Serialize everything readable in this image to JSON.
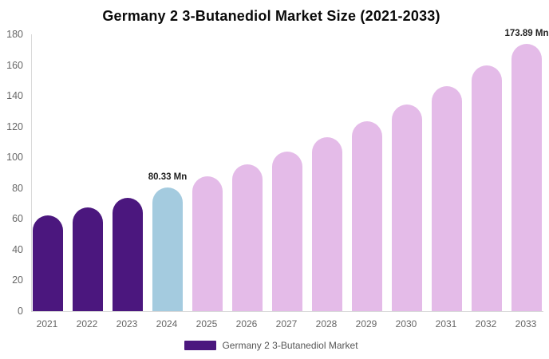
{
  "title": "Germany 2 3-Butanediol Market Size (2021-2033)",
  "legend": {
    "label": "Germany 2 3-Butanediol Market",
    "swatch_color": "#4B177E"
  },
  "colors": {
    "bar_past": "#4B177E",
    "bar_current": "#A4CBDF",
    "bar_forecast": "#E4BBE8",
    "axis_line": "#D9D9D9",
    "tick_text": "#666666",
    "value_label_text": "#222222",
    "background": "#FFFFFF"
  },
  "chart_data": {
    "type": "bar",
    "title": "Germany 2 3-Butanediol Market Size (2021-2033)",
    "series_name": "Germany 2 3-Butanediol Market",
    "categories": [
      "2021",
      "2022",
      "2023",
      "2024",
      "2025",
      "2026",
      "2027",
      "2028",
      "2029",
      "2030",
      "2031",
      "2032",
      "2033"
    ],
    "values": [
      62.1,
      67.6,
      73.7,
      80.33,
      87.5,
      95.3,
      103.9,
      113.2,
      123.3,
      134.4,
      146.4,
      159.6,
      173.89
    ],
    "bar_colors": [
      "#4B177E",
      "#4B177E",
      "#4B177E",
      "#A4CBDF",
      "#E4BBE8",
      "#E4BBE8",
      "#E4BBE8",
      "#E4BBE8",
      "#E4BBE8",
      "#E4BBE8",
      "#E4BBE8",
      "#E4BBE8",
      "#E4BBE8"
    ],
    "data_labels": {
      "3": "80.33 Mn",
      "12": "173.89 Mn"
    },
    "unit": "Mn",
    "xlabel": "",
    "ylabel": "",
    "ylim": [
      0,
      180
    ],
    "yticks": [
      0,
      20,
      40,
      60,
      80,
      100,
      120,
      140,
      160,
      180
    ],
    "grid": false,
    "legend_position": "bottom"
  }
}
